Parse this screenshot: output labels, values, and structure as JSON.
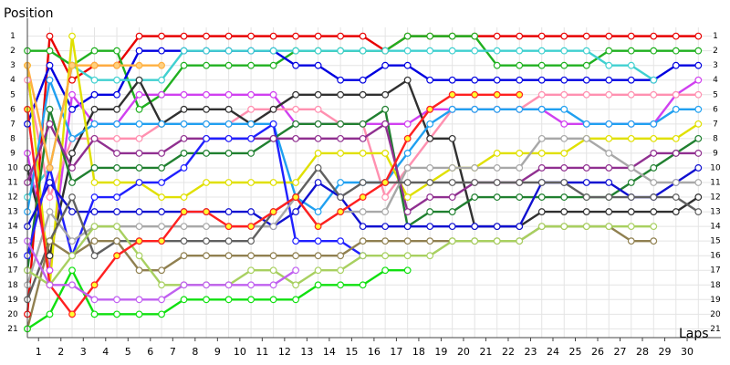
{
  "chart_data": {
    "type": "line",
    "y_label": "Position",
    "x_label": "Laps",
    "x": [
      0,
      1,
      2,
      3,
      4,
      5,
      6,
      7,
      8,
      9,
      10,
      11,
      12,
      13,
      14,
      15,
      16,
      17,
      18,
      19,
      20,
      21,
      22,
      23,
      24,
      25,
      26,
      27,
      28,
      29,
      30
    ],
    "xlim": [
      0,
      30.6
    ],
    "ylim": [
      0.4,
      21.6
    ],
    "y_inverted": true,
    "grid": true,
    "xticks": [
      {
        "value": 0.5,
        "label": "1"
      },
      {
        "value": 1.5,
        "label": "2"
      },
      {
        "value": 2.5,
        "label": "3"
      },
      {
        "value": 3.5,
        "label": "4"
      },
      {
        "value": 4.5,
        "label": "5"
      },
      {
        "value": 5.5,
        "label": "6"
      },
      {
        "value": 6.5,
        "label": "7"
      },
      {
        "value": 7.5,
        "label": "8"
      },
      {
        "value": 8.5,
        "label": "9"
      },
      {
        "value": 9.5,
        "label": "10"
      },
      {
        "value": 10.5,
        "label": "11"
      },
      {
        "value": 11.5,
        "label": "12"
      },
      {
        "value": 12.5,
        "label": "13"
      },
      {
        "value": 13.5,
        "label": "14"
      },
      {
        "value": 14.5,
        "label": "15"
      },
      {
        "value": 15.5,
        "label": "16"
      },
      {
        "value": 16.5,
        "label": "17"
      },
      {
        "value": 17.5,
        "label": "18"
      },
      {
        "value": 18.5,
        "label": "19"
      },
      {
        "value": 19.5,
        "label": "20"
      },
      {
        "value": 20.5,
        "label": "21"
      },
      {
        "value": 21.5,
        "label": "22"
      },
      {
        "value": 22.5,
        "label": "23"
      },
      {
        "value": 23.5,
        "label": "24"
      },
      {
        "value": 24.5,
        "label": "25"
      },
      {
        "value": 25.5,
        "label": "26"
      },
      {
        "value": 26.5,
        "label": "27"
      },
      {
        "value": 27.5,
        "label": "28"
      },
      {
        "value": 28.5,
        "label": "29"
      },
      {
        "value": 29.5,
        "label": "30"
      }
    ],
    "yticks": [
      1,
      2,
      3,
      4,
      5,
      6,
      7,
      8,
      9,
      10,
      11,
      12,
      13,
      14,
      15,
      16,
      17,
      18,
      19,
      20,
      21
    ],
    "series": [
      {
        "color": "#e80000",
        "values": [
          20,
          1,
          4,
          3,
          3,
          1,
          1,
          1,
          1,
          1,
          1,
          1,
          1,
          1,
          1,
          1,
          2,
          1,
          1,
          1,
          1,
          1,
          1,
          1,
          1,
          1,
          1,
          1,
          1,
          1,
          1
        ]
      },
      {
        "color": "#20b020",
        "values": [
          2,
          2,
          3,
          2,
          2,
          6,
          5,
          3,
          3,
          3,
          3,
          3,
          2,
          2,
          2,
          2,
          2,
          1,
          1,
          1,
          1,
          3,
          3,
          3,
          3,
          3,
          2,
          2,
          2,
          2,
          2
        ]
      },
      {
        "color": "#0000e0",
        "values": [
          7,
          3,
          6,
          5,
          5,
          2,
          2,
          2,
          2,
          2,
          2,
          2,
          3,
          3,
          4,
          4,
          3,
          3,
          4,
          4,
          4,
          4,
          4,
          4,
          4,
          4,
          4,
          4,
          4,
          3,
          3
        ]
      },
      {
        "color": "#40d0d0",
        "values": [
          12,
          10,
          3,
          4,
          4,
          4,
          4,
          2,
          2,
          2,
          2,
          2,
          2,
          2,
          2,
          2,
          2,
          2,
          2,
          2,
          2,
          2,
          2,
          2,
          2,
          2,
          3,
          3,
          4,
          null,
          null
        ]
      },
      {
        "color": "#d040f0",
        "values": [
          9,
          17,
          5,
          7,
          7,
          5,
          5,
          5,
          5,
          5,
          5,
          5,
          7,
          7,
          7,
          7,
          7,
          7,
          6,
          6,
          6,
          6,
          6,
          6,
          7,
          7,
          7,
          7,
          7,
          5,
          4
        ]
      },
      {
        "color": "#ff90b0",
        "values": [
          4,
          12,
          8,
          8,
          8,
          8,
          7,
          7,
          7,
          7,
          6,
          6,
          6,
          6,
          7,
          7,
          12,
          10,
          8,
          6,
          6,
          6,
          6,
          5,
          5,
          5,
          5,
          5,
          5,
          5,
          5
        ]
      },
      {
        "color": "#303030",
        "values": [
          10,
          16,
          9,
          6,
          6,
          4,
          7,
          6,
          6,
          6,
          7,
          6,
          5,
          5,
          5,
          5,
          5,
          4,
          8,
          8,
          14,
          14,
          14,
          13,
          13,
          13,
          13,
          13,
          13,
          13,
          12
        ]
      },
      {
        "color": "#20a0f0",
        "values": [
          13,
          4,
          8,
          7,
          7,
          7,
          7,
          7,
          7,
          7,
          7,
          7,
          12,
          13,
          11,
          11,
          11,
          9,
          7,
          6,
          6,
          6,
          6,
          6,
          6,
          7,
          7,
          7,
          7,
          6,
          6
        ]
      },
      {
        "color": "#e0e000",
        "values": [
          3,
          18,
          1,
          11,
          11,
          11,
          12,
          12,
          11,
          11,
          11,
          11,
          11,
          9,
          9,
          9,
          9,
          12,
          11,
          10,
          10,
          9,
          9,
          9,
          9,
          8,
          8,
          8,
          8,
          8,
          7
        ]
      },
      {
        "color": "#208030",
        "values": [
          17,
          6,
          11,
          10,
          10,
          10,
          10,
          9,
          9,
          9,
          9,
          8,
          7,
          7,
          7,
          7,
          6,
          14,
          13,
          13,
          12,
          12,
          12,
          12,
          12,
          12,
          12,
          11,
          10,
          9,
          8
        ]
      },
      {
        "color": "#903090",
        "values": [
          11,
          7,
          10,
          8,
          9,
          9,
          9,
          8,
          8,
          8,
          8,
          8,
          8,
          8,
          8,
          8,
          7,
          13,
          12,
          12,
          11,
          11,
          11,
          10,
          10,
          10,
          10,
          10,
          9,
          9,
          9
        ]
      },
      {
        "color": "#1010d0",
        "values": [
          14,
          11,
          13,
          13,
          13,
          13,
          13,
          13,
          13,
          13,
          13,
          14,
          13,
          11,
          12,
          14,
          14,
          14,
          14,
          14,
          14,
          14,
          14,
          11,
          11,
          11,
          11,
          12,
          12,
          11,
          10
        ]
      },
      {
        "color": "#2020ff",
        "values": [
          16,
          10,
          16,
          12,
          12,
          11,
          11,
          10,
          8,
          8,
          8,
          7,
          15,
          15,
          15,
          16,
          null,
          null,
          null,
          null,
          null,
          null,
          null,
          null,
          null,
          null,
          null,
          null,
          null,
          null,
          null
        ]
      },
      {
        "color": "#a8a8a8",
        "values": [
          18,
          13,
          15,
          14,
          14,
          14,
          14,
          14,
          14,
          14,
          14,
          14,
          12,
          14,
          13,
          13,
          13,
          10,
          10,
          10,
          10,
          10,
          10,
          8,
          8,
          8,
          9,
          10,
          11,
          11,
          11
        ]
      },
      {
        "color": "#606060",
        "values": [
          19,
          15,
          12,
          16,
          15,
          15,
          15,
          15,
          15,
          15,
          15,
          13,
          12,
          10,
          12,
          11,
          11,
          11,
          11,
          11,
          11,
          11,
          11,
          11,
          11,
          12,
          12,
          12,
          12,
          12,
          13
        ]
      },
      {
        "color": "#908050",
        "values": [
          21,
          15,
          16,
          15,
          15,
          17,
          17,
          16,
          16,
          16,
          16,
          16,
          16,
          16,
          16,
          15,
          15,
          15,
          15,
          15,
          15,
          15,
          15,
          14,
          14,
          14,
          14,
          15,
          15,
          null,
          null
        ]
      },
      {
        "color": "#a8d060",
        "values": [
          17,
          18,
          16,
          14,
          14,
          16,
          18,
          18,
          18,
          18,
          17,
          17,
          18,
          17,
          17,
          16,
          16,
          16,
          16,
          15,
          15,
          15,
          15,
          14,
          14,
          14,
          14,
          14,
          14,
          null,
          null
        ]
      },
      {
        "color": "#10e010",
        "values": [
          21,
          20,
          17,
          20,
          20,
          20,
          20,
          19,
          19,
          19,
          19,
          19,
          19,
          18,
          18,
          18,
          17,
          17,
          null,
          null,
          null,
          null,
          null,
          null,
          null,
          null,
          null,
          null,
          null,
          null,
          null
        ]
      },
      {
        "color": "#ff2020",
        "marker_fill": "#ffff30",
        "values": [
          6,
          18,
          20,
          18,
          16,
          15,
          15,
          13,
          13,
          14,
          14,
          13,
          12,
          14,
          13,
          12,
          11,
          8,
          6,
          5,
          5,
          5,
          5,
          null,
          null,
          null,
          null,
          null,
          null,
          null,
          null
        ]
      },
      {
        "color": "#c060f0",
        "values": [
          15,
          18,
          18,
          19,
          19,
          19,
          19,
          18,
          18,
          18,
          18,
          18,
          17,
          null,
          null,
          null,
          null,
          null,
          null,
          null,
          null,
          null,
          null,
          null,
          null,
          null,
          null,
          null,
          null,
          null,
          null
        ]
      },
      {
        "color": "#ffb040",
        "marker_fill": "#ffd080",
        "values": [
          3,
          10,
          3,
          3,
          3,
          3,
          3,
          null,
          null,
          null,
          null,
          null,
          null,
          null,
          null,
          null,
          null,
          null,
          null,
          null,
          null,
          null,
          null,
          null,
          null,
          null,
          null,
          null,
          null,
          null,
          null
        ]
      }
    ]
  }
}
